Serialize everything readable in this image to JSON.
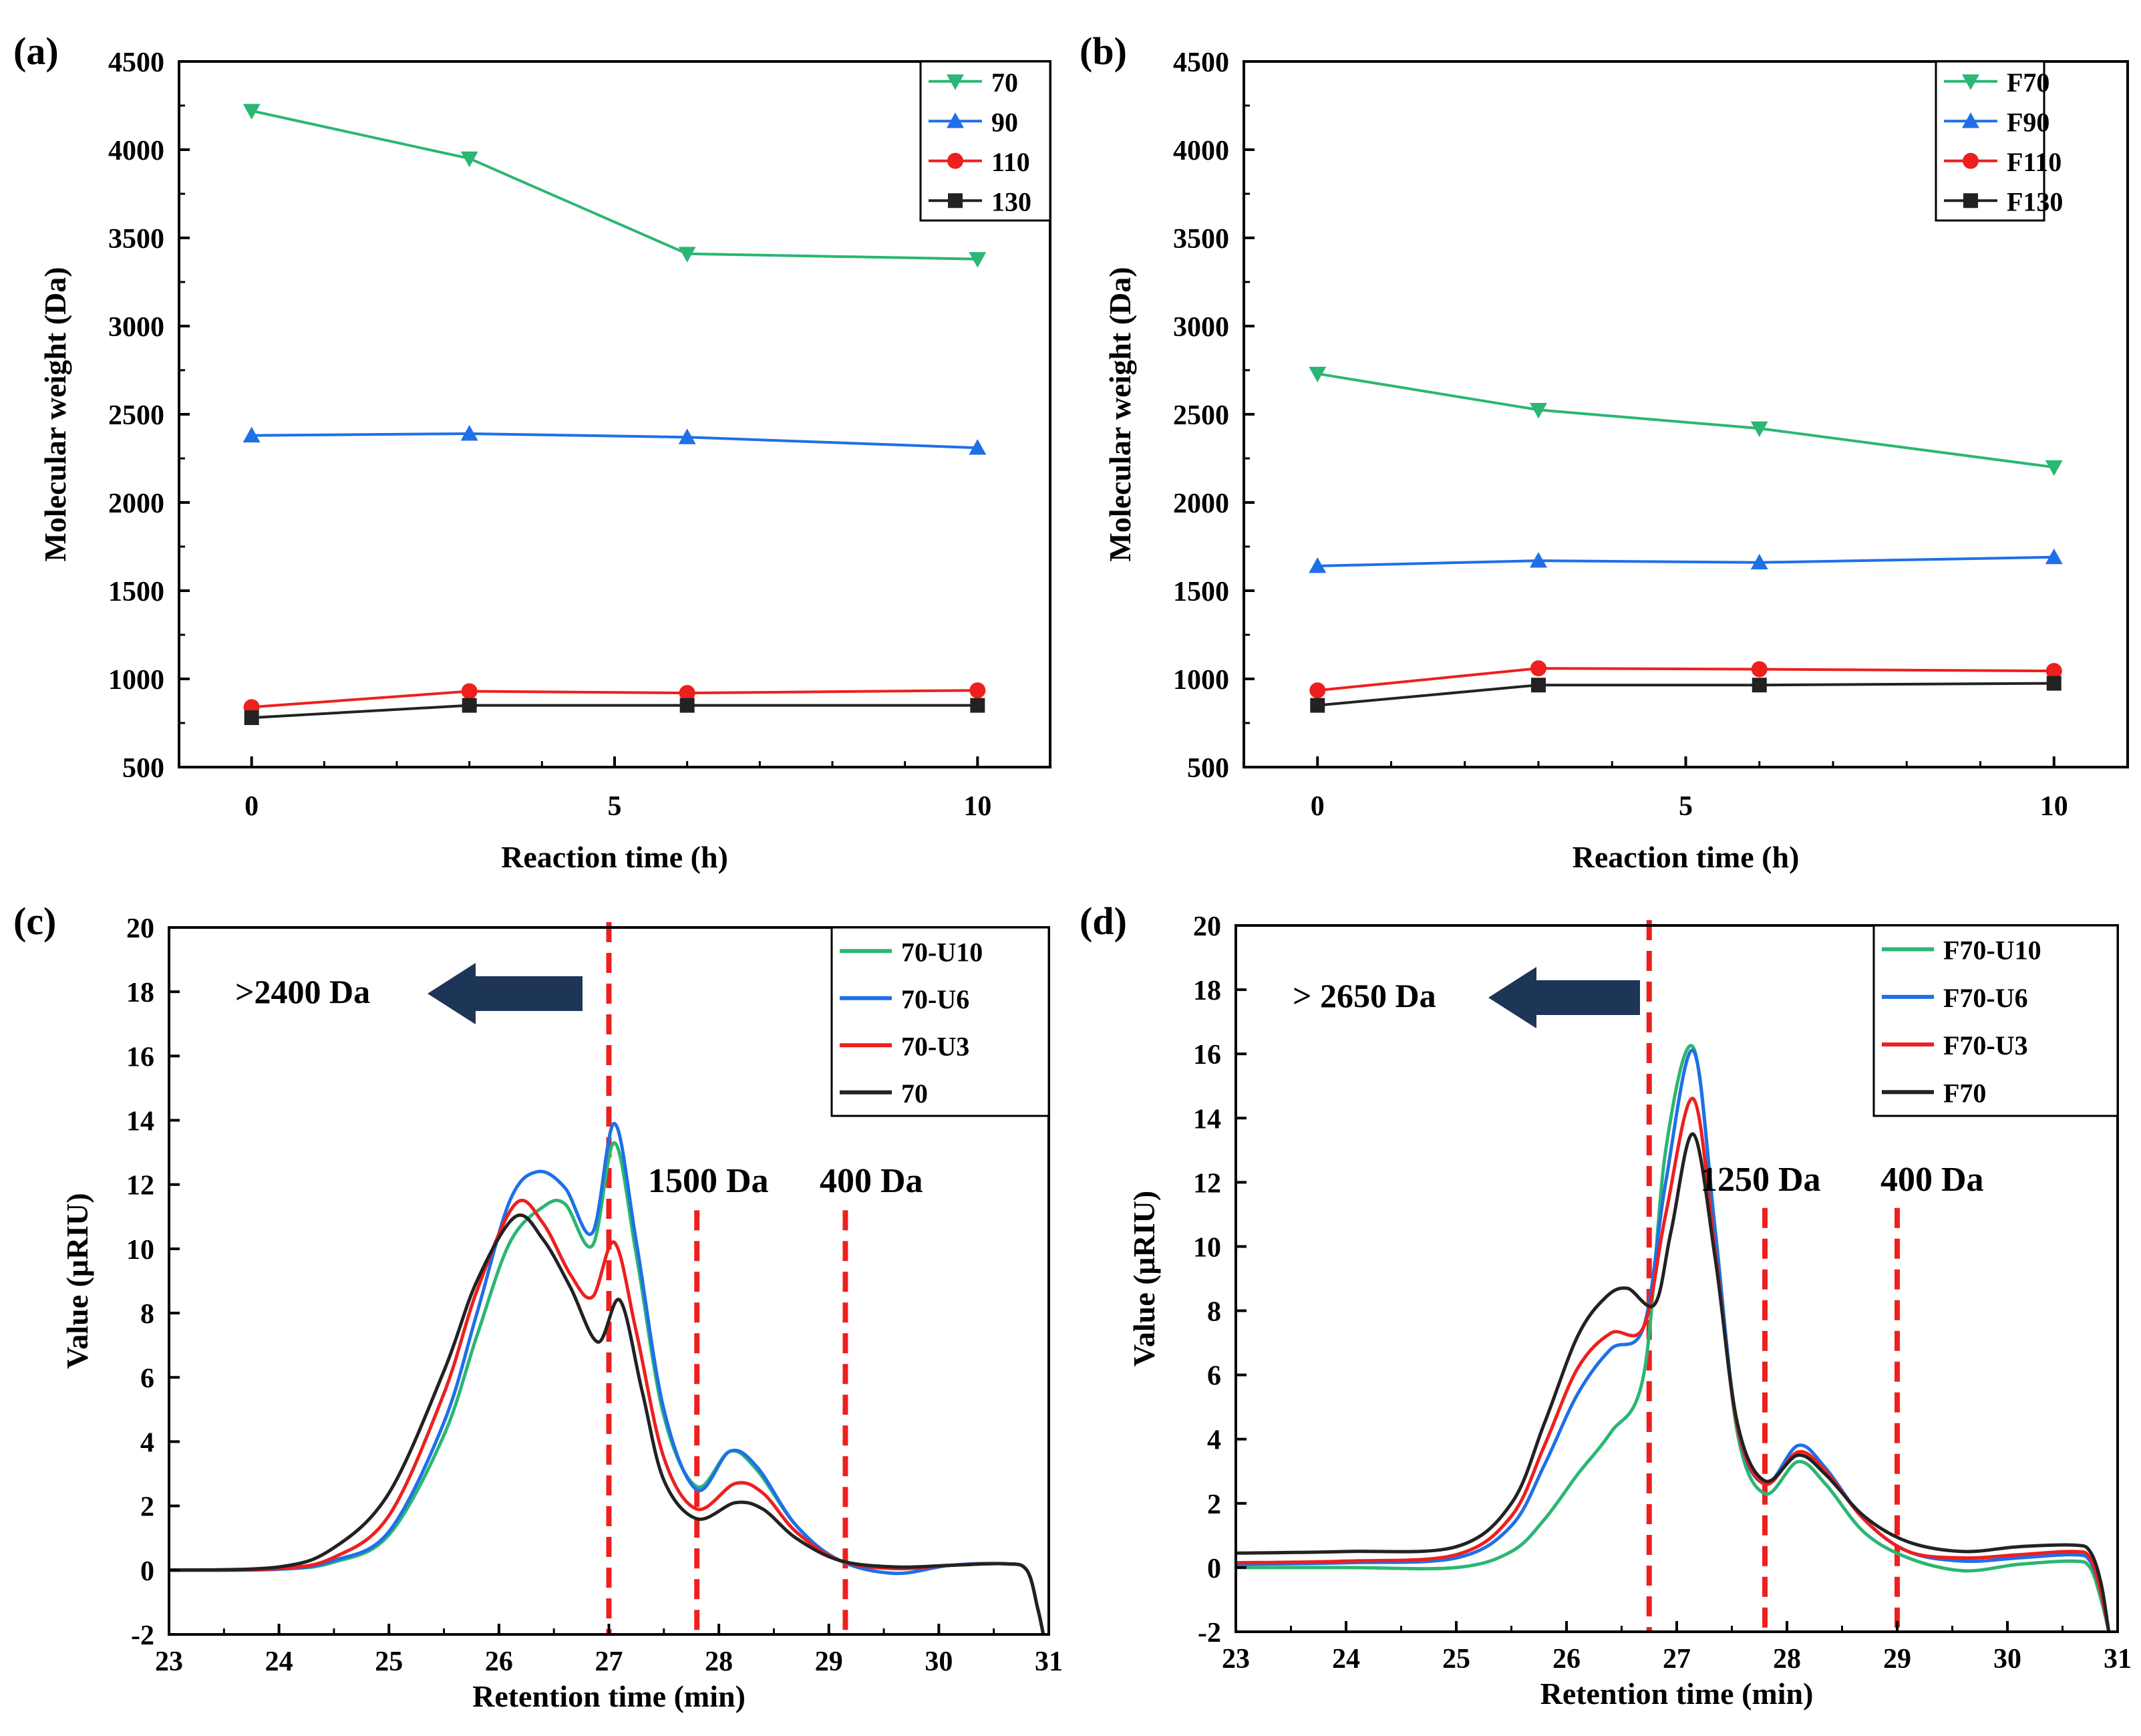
{
  "figure": {
    "colors": {
      "green": "#2bb673",
      "blue": "#1f6fe8",
      "red": "#ee1f1f",
      "black": "#222222",
      "arrow": "#1d3557",
      "cut_line": "#ee1f1f"
    }
  },
  "chart_data": [
    {
      "panel": "(a)",
      "type": "line",
      "xlabel": "Reaction time (h)",
      "ylabel": "Molecular weight (Da)",
      "xlim": [
        -1,
        11
      ],
      "ylim": [
        500,
        4500
      ],
      "xticks": [
        0,
        5,
        10
      ],
      "yticks": [
        500,
        1000,
        1500,
        2000,
        2500,
        3000,
        3500,
        4000,
        4500
      ],
      "legend_position": "top-right",
      "x": [
        0,
        3,
        6,
        10
      ],
      "series": [
        {
          "name": "70",
          "color": "#2bb673",
          "marker": "triangle-down",
          "values": [
            4220,
            3950,
            3410,
            3380
          ]
        },
        {
          "name": "90",
          "color": "#1f6fe8",
          "marker": "triangle-up",
          "values": [
            2380,
            2390,
            2370,
            2310
          ]
        },
        {
          "name": "110",
          "color": "#ee1f1f",
          "marker": "circle",
          "values": [
            840,
            930,
            920,
            935
          ]
        },
        {
          "name": "130",
          "color": "#222222",
          "marker": "square",
          "values": [
            780,
            850,
            850,
            850
          ]
        }
      ]
    },
    {
      "panel": "(b)",
      "type": "line",
      "xlabel": "Reaction time (h)",
      "ylabel": "Molecular weight (Da)",
      "xlim": [
        -1,
        11
      ],
      "ylim": [
        500,
        4500
      ],
      "xticks": [
        0,
        5,
        10
      ],
      "yticks": [
        500,
        1000,
        1500,
        2000,
        2500,
        3000,
        3500,
        4000,
        4500
      ],
      "legend_position": "top-right",
      "x": [
        0,
        3,
        6,
        10
      ],
      "series": [
        {
          "name": "F70",
          "color": "#2bb673",
          "marker": "triangle-down",
          "values": [
            2730,
            2525,
            2420,
            2200
          ]
        },
        {
          "name": "F90",
          "color": "#1f6fe8",
          "marker": "triangle-up",
          "values": [
            1640,
            1670,
            1660,
            1690
          ]
        },
        {
          "name": "F110",
          "color": "#ee1f1f",
          "marker": "circle",
          "values": [
            935,
            1060,
            1055,
            1045
          ]
        },
        {
          "name": "F130",
          "color": "#222222",
          "marker": "square",
          "values": [
            850,
            965,
            965,
            975
          ]
        }
      ]
    },
    {
      "panel": "(c)",
      "type": "line",
      "xlabel": "Retention time (min)",
      "ylabel": "Value (μRIU)",
      "xlim": [
        23,
        31
      ],
      "ylim": [
        -2,
        20
      ],
      "xticks": [
        23,
        24,
        25,
        26,
        27,
        28,
        29,
        30,
        31
      ],
      "yticks": [
        -2,
        0,
        2,
        4,
        6,
        8,
        10,
        12,
        14,
        16,
        18,
        20
      ],
      "legend_position": "top-right",
      "cut_lines": [
        27.0,
        27.8,
        29.15
      ],
      "annotations": [
        ">2400 Da",
        "1500 Da",
        "400 Da"
      ],
      "series": [
        {
          "name": "70-U10",
          "color": "#2bb673",
          "x": [
            23,
            24,
            24.5,
            25,
            25.5,
            25.8,
            26.1,
            26.4,
            26.6,
            26.85,
            27.05,
            27.25,
            27.5,
            27.8,
            28.1,
            28.35,
            28.7,
            29.1,
            29.6,
            30.1,
            30.6,
            30.8,
            30.9,
            30.95
          ],
          "y": [
            0,
            0.03,
            0.25,
            1.1,
            4.2,
            7.3,
            10.2,
            11.3,
            11.4,
            10.1,
            13.3,
            9.8,
            4.8,
            2.6,
            3.7,
            3.1,
            1.4,
            0.3,
            0.05,
            0.15,
            0.2,
            0,
            -1.2,
            -2
          ]
        },
        {
          "name": "70-U6",
          "color": "#1f6fe8",
          "x": [
            23,
            24,
            24.5,
            25,
            25.5,
            25.8,
            26.1,
            26.35,
            26.6,
            26.85,
            27.05,
            27.25,
            27.5,
            27.8,
            28.1,
            28.35,
            28.7,
            29.1,
            29.6,
            30.1,
            30.6,
            30.8,
            30.9,
            30.95
          ],
          "y": [
            0,
            0.03,
            0.3,
            1.2,
            4.6,
            8.0,
            11.5,
            12.4,
            11.9,
            10.5,
            13.9,
            10.2,
            5.0,
            2.5,
            3.7,
            3.2,
            1.4,
            0.3,
            -0.1,
            0.15,
            0.2,
            0,
            -1.2,
            -2
          ]
        },
        {
          "name": "70-U3",
          "color": "#ee1f1f",
          "x": [
            23,
            24,
            24.5,
            25,
            25.5,
            25.8,
            26.15,
            26.4,
            26.65,
            26.85,
            27.05,
            27.25,
            27.5,
            27.8,
            28.15,
            28.4,
            28.7,
            29.1,
            29.6,
            30.1,
            30.6,
            30.8,
            30.9,
            30.95
          ],
          "y": [
            0,
            0.05,
            0.4,
            1.7,
            5.5,
            8.7,
            11.4,
            10.8,
            9.2,
            8.5,
            10.2,
            7.4,
            3.5,
            1.9,
            2.7,
            2.4,
            1.2,
            0.3,
            0.05,
            0.15,
            0.2,
            0,
            -1.2,
            -2
          ]
        },
        {
          "name": "70",
          "color": "#222222",
          "x": [
            23,
            24,
            24.5,
            25,
            25.5,
            25.8,
            26.15,
            26.4,
            26.65,
            26.9,
            27.1,
            27.3,
            27.5,
            27.8,
            28.15,
            28.4,
            28.7,
            29.1,
            29.6,
            30.1,
            30.6,
            30.8,
            30.9,
            30.95
          ],
          "y": [
            0,
            0.1,
            0.7,
            2.4,
            6.2,
            9.0,
            11.0,
            10.3,
            8.8,
            7.1,
            8.4,
            5.6,
            2.8,
            1.6,
            2.1,
            1.9,
            1.0,
            0.3,
            0.1,
            0.15,
            0.2,
            0,
            -1.2,
            -2
          ]
        }
      ]
    },
    {
      "panel": "(d)",
      "type": "line",
      "xlabel": "Retention time (min)",
      "ylabel": "Value (μRIU)",
      "xlim": [
        23,
        31
      ],
      "ylim": [
        -2,
        20
      ],
      "xticks": [
        23,
        24,
        25,
        26,
        27,
        28,
        29,
        30,
        31
      ],
      "yticks": [
        -2,
        0,
        2,
        4,
        6,
        8,
        10,
        12,
        14,
        16,
        18,
        20
      ],
      "legend_position": "top-right",
      "cut_lines": [
        26.75,
        27.8,
        29.0
      ],
      "annotations": [
        "> 2650 Da",
        "1250 Da",
        "400 Da"
      ],
      "series": [
        {
          "name": "F70-U10",
          "color": "#2bb673",
          "x": [
            23,
            24,
            25,
            25.5,
            25.8,
            26.1,
            26.4,
            26.7,
            26.9,
            27.15,
            27.35,
            27.55,
            27.8,
            28.1,
            28.35,
            28.7,
            29.1,
            29.6,
            30.1,
            30.6,
            30.75,
            30.85,
            30.92
          ],
          "y": [
            0,
            0,
            0,
            0.5,
            1.5,
            2.9,
            4.2,
            6.0,
            13.0,
            16.2,
            10.5,
            4.2,
            2.3,
            3.3,
            2.6,
            1.1,
            0.3,
            -0.1,
            0.1,
            0.2,
            0,
            -1.0,
            -2
          ]
        },
        {
          "name": "F70-U6",
          "color": "#1f6fe8",
          "x": [
            23,
            24,
            25,
            25.5,
            25.8,
            26.1,
            26.4,
            26.7,
            26.9,
            27.15,
            27.35,
            27.55,
            27.8,
            28.1,
            28.35,
            28.7,
            29.1,
            29.6,
            30.1,
            30.6,
            30.75,
            30.85,
            30.92
          ],
          "y": [
            0.1,
            0.15,
            0.3,
            1.3,
            3.2,
            5.4,
            6.8,
            7.5,
            12.0,
            16.1,
            10.4,
            4.4,
            2.6,
            3.8,
            3.1,
            1.5,
            0.5,
            0.2,
            0.3,
            0.4,
            0.2,
            -0.8,
            -2
          ]
        },
        {
          "name": "F70-U3",
          "color": "#ee1f1f",
          "x": [
            23,
            24,
            25,
            25.5,
            25.8,
            26.1,
            26.4,
            26.7,
            26.9,
            27.15,
            27.35,
            27.55,
            27.8,
            28.1,
            28.35,
            28.7,
            29.1,
            29.6,
            30.1,
            30.6,
            30.75,
            30.85,
            30.92
          ],
          "y": [
            0.15,
            0.2,
            0.4,
            1.6,
            3.8,
            6.2,
            7.3,
            7.5,
            11.0,
            14.6,
            9.8,
            4.4,
            2.6,
            3.6,
            3.0,
            1.5,
            0.5,
            0.3,
            0.4,
            0.5,
            0.3,
            -0.8,
            -2
          ]
        },
        {
          "name": "F70",
          "color": "#222222",
          "x": [
            23,
            24,
            25,
            25.5,
            25.8,
            26.1,
            26.35,
            26.55,
            26.8,
            26.95,
            27.15,
            27.35,
            27.55,
            27.8,
            28.1,
            28.35,
            28.7,
            29.1,
            29.6,
            30.1,
            30.6,
            30.75,
            30.85,
            30.92
          ],
          "y": [
            0.45,
            0.5,
            0.65,
            2.0,
            4.5,
            7.2,
            8.4,
            8.7,
            8.2,
            10.5,
            13.5,
            9.6,
            4.5,
            2.7,
            3.5,
            2.9,
            1.6,
            0.8,
            0.5,
            0.65,
            0.7,
            0.5,
            -0.5,
            -2
          ]
        }
      ]
    }
  ]
}
